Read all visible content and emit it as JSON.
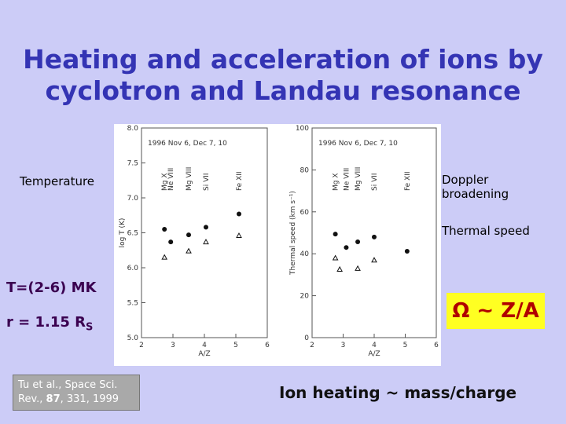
{
  "title_line1": "Heating and acceleration of ions by",
  "title_line2": "cyclotron and Landau resonance",
  "left_labels": [
    "Temperature",
    "T=(2-6) MK"
  ],
  "radius": {
    "text": "r = 1.15 R",
    "subscript": "S"
  },
  "right_labels": [
    "Doppler broadening",
    "Thermal speed"
  ],
  "omega": "Ω ~ Z/A",
  "citation": [
    "Tu et al., Space Sci. Rev., ",
    "87",
    ", 331, 1999"
  ],
  "conclusion": "Ion heating ~ mass/charge",
  "chart_data": [
    {
      "type": "scatter",
      "annotation": "1996 Nov 6, Dec 7, 10",
      "xlabel": "A/Z",
      "ylabel": "log T (K)",
      "ion_labels": [
        "Mg X",
        "Ne VIII",
        "Mg VIII",
        "Si VII",
        "Fe XII"
      ],
      "xlim": [
        2,
        6
      ],
      "xticks": [
        2,
        3,
        4,
        5,
        6
      ],
      "ylim": [
        5,
        8
      ],
      "yticks": [
        {
          "value": 5,
          "label": "5.0"
        },
        5.5,
        {
          "value": 6,
          "label": "6.0"
        },
        6.5,
        {
          "value": 7,
          "label": "7.0"
        },
        7.5,
        {
          "value": 8,
          "label": "8.0"
        }
      ],
      "series": [
        {
          "marker": "circle",
          "x": [
            2.73,
            2.93,
            3.5,
            4.05,
            5.1
          ],
          "values": [
            6.55,
            6.37,
            6.47,
            6.58,
            6.77
          ]
        },
        {
          "marker": "triangle",
          "x": [
            2.73,
            3.5,
            4.05,
            5.1
          ],
          "values": [
            6.15,
            6.24,
            6.37,
            6.46
          ]
        }
      ]
    },
    {
      "type": "scatter",
      "annotation": "1996 Nov 6, Dec 7, 10",
      "xlabel": "A/Z",
      "ylabel": "Thermal speed (km s⁻¹)",
      "ion_labels": [
        "Mg X",
        "Ne VIII",
        "Mg VIII",
        "Si VII",
        "Fe XII"
      ],
      "xlim": [
        2,
        6
      ],
      "xticks": [
        2,
        3,
        4,
        5,
        6
      ],
      "ylim": [
        0,
        100
      ],
      "yticks": [
        0,
        20,
        40,
        60,
        80,
        100
      ],
      "series": [
        {
          "marker": "circle",
          "x": [
            2.75,
            3.1,
            3.47,
            4.0,
            5.06
          ],
          "values": [
            49.4,
            43,
            45.7,
            48,
            41.2
          ]
        },
        {
          "marker": "triangle",
          "x": [
            2.75,
            2.89,
            3.47,
            4.0
          ],
          "values": [
            38,
            32.6,
            33,
            37
          ]
        }
      ]
    }
  ]
}
